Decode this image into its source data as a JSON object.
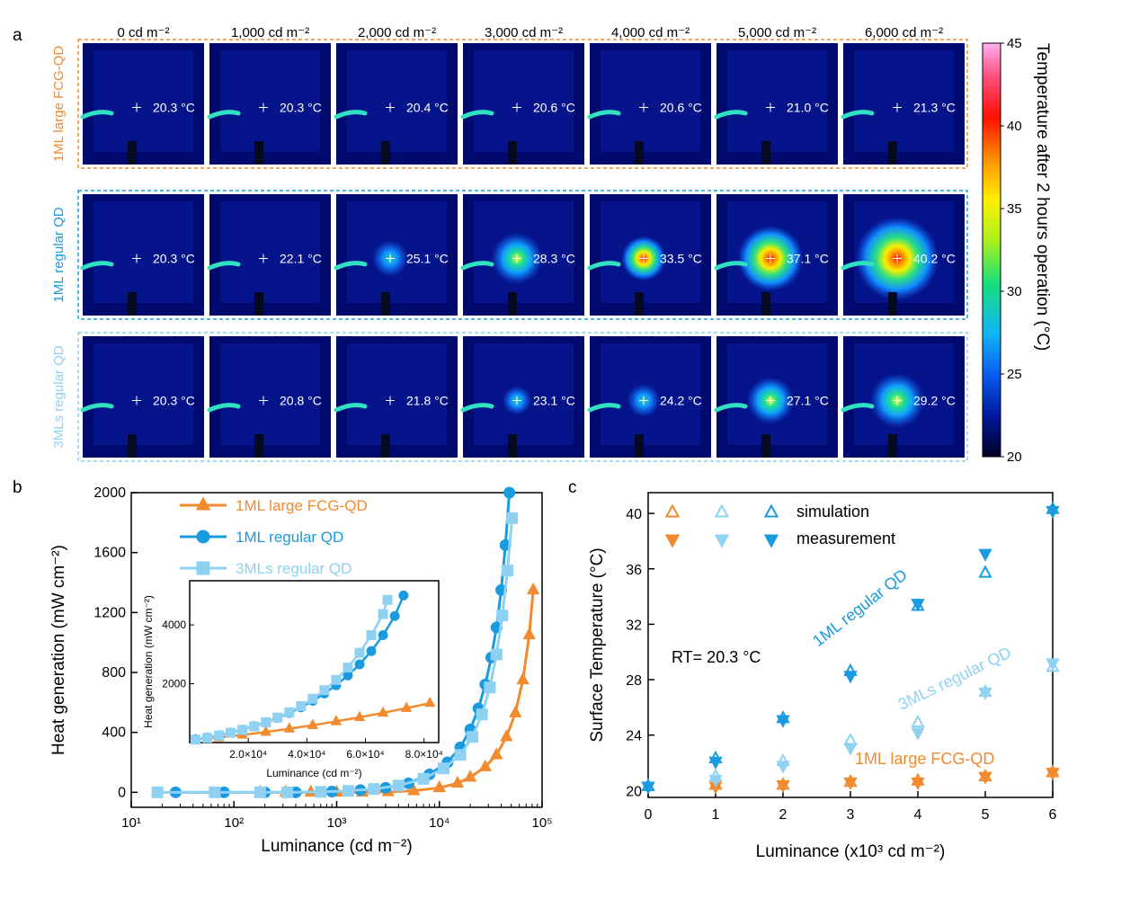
{
  "panel_a": {
    "label": "a",
    "luminance_labels": [
      "0 cd m⁻²",
      "1,000 cd m⁻²",
      "2,000 cd m⁻²",
      "3,000 cd m⁻²",
      "4,000 cd m⁻²",
      "5,000 cd m⁻²",
      "6,000 cd m⁻²"
    ],
    "rows": [
      {
        "name": "1ML large FCG-QD",
        "color": "#f28a2e",
        "temps": [
          "20.3 °C",
          "20.3 °C",
          "20.4 °C",
          "20.6 °C",
          "20.6 °C",
          "21.0 °C",
          "21.3 °C"
        ],
        "values": [
          20.3,
          20.3,
          20.4,
          20.6,
          20.6,
          21.0,
          21.3
        ]
      },
      {
        "name": "1ML regular QD",
        "color": "#1a9be0",
        "temps": [
          "20.3 °C",
          "22.1 °C",
          "25.1 °C",
          "28.3 °C",
          "33.5 °C",
          "37.1 °C",
          "40.2 °C"
        ],
        "values": [
          20.3,
          22.1,
          25.1,
          28.3,
          33.5,
          37.1,
          40.2
        ]
      },
      {
        "name": "3MLs regular QD",
        "color": "#8fd1f3",
        "temps": [
          "20.3 °C",
          "20.8 °C",
          "21.8 °C",
          "23.1 °C",
          "24.2 °C",
          "27.1 °C",
          "29.2 °C"
        ],
        "values": [
          20.3,
          20.8,
          21.8,
          23.1,
          24.2,
          27.1,
          29.2
        ]
      }
    ],
    "colorbar": {
      "label": "Temperature after 2 hours operation (°C)",
      "ticks": [
        "20",
        "25",
        "30",
        "35",
        "40",
        "45"
      ],
      "min": 20,
      "max": 45
    }
  },
  "chart_data": [
    {
      "type": "line",
      "panel": "b",
      "xlabel": "Luminance (cd m⁻²)",
      "ylabel": "Heat generation (mW cm⁻²)",
      "xscale": "log",
      "xlim": [
        10,
        100000
      ],
      "ylim": [
        -100,
        2000
      ],
      "xticks": [
        "10¹",
        "10²",
        "10³",
        "10⁴",
        "10⁵"
      ],
      "yticks": [
        "0",
        "400",
        "800",
        "1200",
        "1600",
        "2000"
      ],
      "legend": "top-center",
      "series": [
        {
          "name": "1ML   large FCG-QD",
          "color": "#f28a2e",
          "marker": "triangle",
          "x": [
            180,
            320,
            560,
            1000,
            1780,
            3160,
            5620,
            10000,
            15000,
            20000,
            28000,
            36000,
            45000,
            55000,
            65000,
            75000,
            82000
          ],
          "y": [
            0,
            0,
            0,
            0,
            1,
            3,
            10,
            30,
            60,
            100,
            170,
            250,
            370,
            530,
            750,
            1050,
            1350
          ]
        },
        {
          "name": "1ML   regular QD",
          "color": "#1a9be0",
          "marker": "circle",
          "x": [
            27,
            80,
            200,
            400,
            900,
            1700,
            3000,
            5000,
            8000,
            12000,
            16000,
            20000,
            24000,
            28000,
            32000,
            36000,
            40000,
            44000,
            48000
          ],
          "y": [
            0,
            0,
            0,
            0,
            5,
            15,
            30,
            60,
            120,
            200,
            300,
            420,
            560,
            720,
            900,
            1100,
            1350,
            1650,
            2000
          ]
        },
        {
          "name": "3MLs regular QD",
          "color": "#8fd1f3",
          "marker": "square",
          "x": [
            18,
            65,
            180,
            330,
            700,
            1300,
            2300,
            4000,
            7000,
            11000,
            16000,
            21000,
            26000,
            31000,
            36000,
            41000,
            46000,
            51000
          ],
          "y": [
            0,
            0,
            0,
            0,
            3,
            10,
            22,
            45,
            90,
            160,
            250,
            370,
            520,
            700,
            920,
            1180,
            1480,
            1830
          ]
        }
      ],
      "inset": {
        "xlabel": "Luminance (cd m⁻²)",
        "ylabel": "Heat generation  (mW cm⁻²)",
        "xlim": [
          0,
          85000
        ],
        "ylim": [
          0,
          5500
        ],
        "xticks": [
          "2.0×10⁴",
          "4.0×10⁴",
          "6.0×10⁴",
          "8.0×10⁴"
        ],
        "yticks": [
          "2000",
          "4000"
        ],
        "series": [
          {
            "name": "1ML   large FCG-QD",
            "color": "#f28a2e",
            "marker": "triangle",
            "x": [
              2000,
              10000,
              18000,
              26000,
              34000,
              42000,
              50000,
              58000,
              66000,
              74000,
              82000
            ],
            "y": [
              100,
              170,
              260,
              360,
              470,
              590,
              720,
              860,
              1010,
              1170,
              1340
            ]
          },
          {
            "name": "1ML   regular QD",
            "color": "#1a9be0",
            "marker": "circle",
            "x": [
              2000,
              6000,
              10000,
              14000,
              18000,
              22000,
              26000,
              30000,
              34000,
              38000,
              42000,
              46000,
              50000,
              54000,
              58000,
              62000,
              66000,
              70000,
              73000
            ],
            "y": [
              110,
              170,
              250,
              340,
              440,
              560,
              690,
              840,
              1010,
              1200,
              1420,
              1670,
              1950,
              2280,
              2660,
              3110,
              3650,
              4300,
              5000
            ]
          },
          {
            "name": "3MLs regular QD",
            "color": "#8fd1f3",
            "marker": "square",
            "x": [
              2000,
              6000,
              10000,
              14000,
              18000,
              22000,
              26000,
              30000,
              34000,
              38000,
              42000,
              46000,
              50000,
              54000,
              58000,
              62000,
              66000,
              67500
            ],
            "y": [
              100,
              160,
              240,
              330,
              430,
              550,
              690,
              850,
              1030,
              1240,
              1490,
              1780,
              2130,
              2550,
              3050,
              3650,
              4370,
              4850
            ]
          }
        ]
      }
    },
    {
      "type": "scatter",
      "panel": "c",
      "xlabel": "Luminance (x10³ cd m⁻²)",
      "ylabel": "Surface Temperature (°C)",
      "xlim": [
        0,
        6
      ],
      "ylim": [
        19.5,
        41.5
      ],
      "xticks": [
        "0",
        "1",
        "2",
        "3",
        "4",
        "5",
        "6"
      ],
      "yticks": [
        "20",
        "24",
        "28",
        "32",
        "36",
        "40"
      ],
      "legend": "top-left",
      "legend_labels": [
        "simulation",
        "measurement"
      ],
      "annotation": "RT= 20.3 °C",
      "series": [
        {
          "name": "1ML large FCG-QD",
          "color": "#f28a2e",
          "x": [
            0,
            1,
            2,
            3,
            4,
            5,
            6
          ],
          "simulation": [
            20.3,
            20.4,
            20.4,
            20.6,
            20.7,
            21.0,
            21.3
          ],
          "measurement": [
            20.3,
            20.3,
            20.4,
            20.6,
            20.6,
            21.0,
            21.3
          ]
        },
        {
          "name": "3MLs regular QD",
          "color": "#8fd1f3",
          "x": [
            0,
            1,
            2,
            3,
            4,
            5,
            6
          ],
          "simulation": [
            20.3,
            21.0,
            22.1,
            23.6,
            24.9,
            27.1,
            28.9
          ],
          "measurement": [
            20.3,
            20.8,
            21.8,
            23.1,
            24.2,
            27.1,
            29.2
          ]
        },
        {
          "name": "1ML regular QD",
          "color": "#1a9be0",
          "x": [
            0,
            1,
            2,
            3,
            4,
            5,
            6
          ],
          "simulation": [
            20.3,
            22.3,
            25.2,
            28.6,
            33.3,
            35.7,
            40.3
          ],
          "measurement": [
            20.3,
            22.1,
            25.1,
            28.3,
            33.5,
            37.1,
            40.2
          ]
        }
      ]
    }
  ],
  "labels": {
    "b": "b",
    "c": "c"
  }
}
